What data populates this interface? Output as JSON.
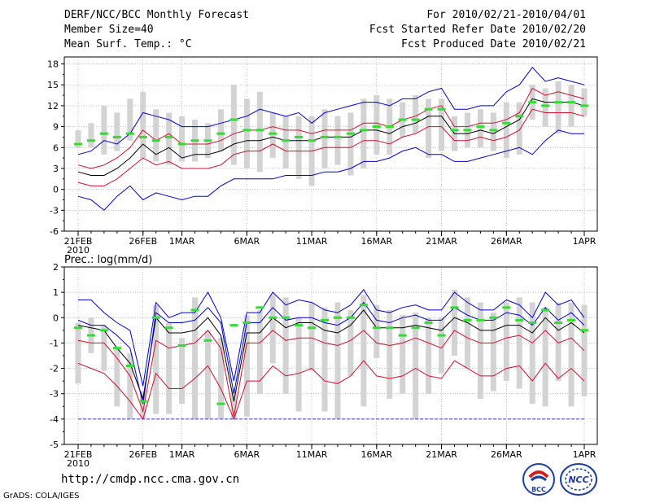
{
  "header": {
    "title": "DERF/NCC/BCC Monthly Forecast",
    "member_size": "Member Size=40",
    "variable1": "Mean Surf. Temp.: °C",
    "forecast_period": "For 2010/02/21-2010/04/01",
    "refer_date": "Fcst Started Refer Date 2010/02/20",
    "produced_date": "Fcst Produced Date 2010/02/21"
  },
  "footer": {
    "url": "http://cmdp.ncc.cma.gov.cn",
    "grads": "GrADS: COLA/IGES",
    "logo1_text": "BCC",
    "logo2_text": "NCC"
  },
  "colors": {
    "upper_blue": "#0000cc",
    "red": "#d01030",
    "mean": "#000000",
    "green": "#33dd33",
    "bar": "#d3d3d3",
    "grid": "#999999",
    "dashed_blue": "#3a3ad0"
  },
  "chart_data": [
    {
      "type": "line",
      "title": "Mean Surf. Temp.: °C",
      "ylim": [
        -6,
        19
      ],
      "yticks": [
        18,
        15,
        12,
        9,
        6,
        3,
        0,
        -3,
        -6
      ],
      "ytick_labels": [
        "18",
        "15",
        "12",
        "9",
        "6",
        "3",
        "0",
        "-3",
        "-6"
      ],
      "xticks": [
        {
          "day": 0,
          "label": "21FEB",
          "label2": "2010"
        },
        {
          "day": 5,
          "label": "26FEB",
          "label2": ""
        },
        {
          "day": 8,
          "label": "1MAR",
          "label2": ""
        },
        {
          "day": 13,
          "label": "6MAR",
          "label2": ""
        },
        {
          "day": 18,
          "label": "11MAR",
          "label2": ""
        },
        {
          "day": 23,
          "label": "16MAR",
          "label2": ""
        },
        {
          "day": 28,
          "label": "21MAR",
          "label2": ""
        },
        {
          "day": 33,
          "label": "26MAR",
          "label2": ""
        },
        {
          "day": 39,
          "label": "1APR",
          "label2": ""
        }
      ],
      "series": [
        {
          "name": "max",
          "color": "#0000cc",
          "values": [
            5.0,
            5.5,
            7.0,
            6.5,
            8.0,
            11.0,
            10.5,
            10.0,
            9.0,
            9.0,
            9.0,
            9.5,
            10.0,
            10.5,
            11.5,
            11.0,
            10.5,
            11.0,
            9.5,
            11.0,
            11.5,
            12.0,
            12.5,
            12.5,
            12.0,
            13.0,
            13.0,
            14.0,
            14.5,
            11.5,
            11.5,
            12.0,
            12.0,
            14.0,
            15.0,
            17.5,
            15.5,
            16.0,
            15.5,
            15.0
          ]
        },
        {
          "name": "upper",
          "color": "#d01030",
          "values": [
            3.5,
            3.0,
            3.5,
            4.5,
            6.0,
            8.5,
            7.0,
            8.0,
            6.5,
            6.5,
            6.5,
            7.0,
            8.0,
            8.5,
            8.5,
            9.0,
            8.5,
            8.5,
            8.0,
            8.5,
            8.5,
            8.5,
            9.5,
            9.5,
            9.0,
            10.0,
            10.5,
            11.5,
            12.0,
            9.0,
            9.0,
            9.5,
            9.5,
            10.0,
            11.0,
            14.5,
            13.5,
            14.0,
            13.5,
            13.0
          ]
        },
        {
          "name": "mean",
          "color": "#000000",
          "values": [
            2.5,
            2.0,
            2.0,
            3.0,
            4.5,
            6.5,
            5.0,
            6.0,
            4.5,
            5.0,
            5.0,
            5.5,
            6.5,
            7.0,
            7.0,
            7.5,
            7.0,
            7.0,
            7.0,
            7.5,
            7.5,
            7.5,
            8.5,
            8.5,
            8.0,
            9.0,
            9.5,
            10.5,
            10.5,
            8.0,
            8.0,
            8.5,
            8.0,
            9.0,
            10.0,
            13.0,
            12.5,
            12.5,
            12.5,
            12.0
          ]
        },
        {
          "name": "lower",
          "color": "#d01030",
          "values": [
            1.0,
            0.5,
            0.5,
            1.5,
            3.0,
            4.5,
            3.5,
            4.0,
            3.0,
            3.0,
            3.0,
            3.5,
            5.0,
            5.5,
            5.5,
            6.5,
            5.5,
            5.5,
            5.5,
            6.0,
            6.0,
            6.0,
            7.0,
            7.0,
            6.5,
            7.5,
            8.0,
            9.0,
            9.0,
            7.0,
            7.0,
            7.5,
            7.0,
            7.5,
            8.5,
            11.5,
            11.0,
            11.0,
            11.0,
            10.5
          ]
        },
        {
          "name": "min",
          "color": "#0000cc",
          "values": [
            -1.0,
            -1.5,
            -3.0,
            -1.0,
            0.5,
            -1.5,
            -0.5,
            -1.0,
            -1.5,
            -1.0,
            -1.0,
            0.5,
            1.5,
            1.5,
            1.5,
            1.5,
            2.0,
            2.0,
            2.0,
            2.5,
            2.5,
            3.0,
            4.0,
            4.0,
            4.5,
            5.5,
            6.0,
            5.0,
            5.0,
            4.0,
            4.0,
            4.5,
            5.0,
            5.5,
            6.0,
            5.0,
            7.0,
            8.5,
            8.0,
            8.0
          ]
        }
      ],
      "obs": [
        6.5,
        7.0,
        8.0,
        7.5,
        8.0,
        7.5,
        7.0,
        7.5,
        6.5,
        7.0,
        7.0,
        8.0,
        10.0,
        8.5,
        8.5,
        8.0,
        7.0,
        7.5,
        7.0,
        7.5,
        7.5,
        8.0,
        8.5,
        9.0,
        9.0,
        10.0,
        10.0,
        11.5,
        11.5,
        8.5,
        8.5,
        9.0,
        8.5,
        9.5,
        10.5,
        12.5,
        12.0,
        12.5,
        12.5,
        12.0
      ],
      "bars": [
        [
          6.0,
          8.5
        ],
        [
          6.0,
          9.5
        ],
        [
          5.0,
          12.0
        ],
        [
          5.5,
          11.0
        ],
        [
          7.0,
          13.0
        ],
        [
          4.5,
          14.0
        ],
        [
          4.0,
          11.5
        ],
        [
          3.5,
          11.0
        ],
        [
          4.0,
          10.5
        ],
        [
          4.0,
          10.0
        ],
        [
          4.5,
          9.5
        ],
        [
          5.5,
          11.5
        ],
        [
          3.5,
          15.0
        ],
        [
          3.0,
          13.0
        ],
        [
          2.5,
          14.0
        ],
        [
          4.5,
          11.0
        ],
        [
          3.0,
          10.5
        ],
        [
          1.5,
          10.5
        ],
        [
          0.5,
          10.5
        ],
        [
          3.0,
          11.5
        ],
        [
          3.5,
          10.5
        ],
        [
          2.0,
          11.0
        ],
        [
          3.0,
          13.0
        ],
        [
          5.0,
          13.5
        ],
        [
          5.0,
          13.0
        ],
        [
          7.5,
          12.5
        ],
        [
          8.0,
          13.5
        ],
        [
          4.5,
          13.0
        ],
        [
          5.5,
          13.0
        ],
        [
          5.5,
          10.5
        ],
        [
          6.0,
          11.0
        ],
        [
          6.0,
          11.5
        ],
        [
          5.5,
          11.0
        ],
        [
          4.5,
          12.5
        ],
        [
          5.0,
          12.5
        ],
        [
          10.0,
          15.0
        ],
        [
          9.0,
          14.5
        ],
        [
          8.0,
          15.5
        ],
        [
          9.0,
          15.0
        ],
        [
          10.5,
          14.5
        ]
      ]
    },
    {
      "type": "line",
      "title": "Prec.: log(mm/d)",
      "ylim": [
        -5,
        2
      ],
      "yticks": [
        2,
        1,
        0,
        -1,
        -2,
        -3,
        -4,
        -5
      ],
      "ytick_labels": [
        "2",
        "1",
        "0",
        "-1",
        "-2",
        "-3",
        "-4",
        "-5"
      ],
      "xticks": [
        {
          "day": 0,
          "label": "21FEB",
          "label2": "2010"
        },
        {
          "day": 5,
          "label": "26FEB",
          "label2": ""
        },
        {
          "day": 8,
          "label": "1MAR",
          "label2": ""
        },
        {
          "day": 13,
          "label": "6MAR",
          "label2": ""
        },
        {
          "day": 18,
          "label": "11MAR",
          "label2": ""
        },
        {
          "day": 23,
          "label": "16MAR",
          "label2": ""
        },
        {
          "day": 28,
          "label": "21MAR",
          "label2": ""
        },
        {
          "day": 33,
          "label": "26MAR",
          "label2": ""
        },
        {
          "day": 39,
          "label": "1APR",
          "label2": ""
        }
      ],
      "dashed_level": -4,
      "series": [
        {
          "name": "max",
          "color": "#0000cc",
          "values": [
            0.7,
            0.7,
            0.2,
            -0.2,
            -0.5,
            -2.7,
            0.6,
            0.0,
            0.2,
            0.2,
            1.0,
            0.0,
            -2.5,
            0.2,
            0.2,
            1.0,
            0.5,
            0.7,
            0.6,
            0.3,
            0.2,
            0.5,
            1.1,
            0.3,
            0.2,
            0.4,
            0.5,
            0.3,
            0.3,
            1.0,
            0.6,
            0.3,
            0.3,
            0.7,
            0.5,
            0.0,
            1.0,
            0.5,
            0.7,
            0.0
          ]
        },
        {
          "name": "upper",
          "color": "#000000",
          "values": [
            -0.3,
            -0.4,
            -0.5,
            -1.2,
            -1.8,
            -3.2,
            0.0,
            -0.6,
            -0.6,
            -0.5,
            0.0,
            -0.7,
            -3.3,
            -0.6,
            -0.6,
            0.0,
            -0.4,
            -0.2,
            -0.2,
            -0.5,
            -0.6,
            -0.3,
            0.3,
            -0.4,
            -0.4,
            -0.4,
            -0.3,
            -0.4,
            -0.5,
            0.0,
            -0.2,
            -0.5,
            -0.5,
            -0.3,
            -0.3,
            -0.6,
            0.0,
            -0.5,
            -0.2,
            -0.6
          ]
        },
        {
          "name": "mean",
          "color": "#d01030",
          "values": [
            -0.9,
            -1.0,
            -1.0,
            -1.6,
            -2.3,
            -3.7,
            -0.9,
            -1.2,
            -1.1,
            -1.0,
            -0.5,
            -1.2,
            -3.9,
            -1.0,
            -1.0,
            -0.5,
            -0.9,
            -0.8,
            -0.8,
            -1.0,
            -1.1,
            -0.9,
            -0.5,
            -1.0,
            -1.1,
            -1.0,
            -0.8,
            -1.0,
            -1.2,
            -0.5,
            -0.8,
            -1.0,
            -1.0,
            -0.8,
            -0.7,
            -1.0,
            -0.5,
            -1.0,
            -0.8,
            -1.3
          ]
        },
        {
          "name": "lower",
          "color": "#d01030",
          "values": [
            -1.8,
            -2.0,
            -2.2,
            -2.7,
            -3.3,
            -4.0,
            -2.2,
            -2.8,
            -2.8,
            -2.4,
            -1.9,
            -2.8,
            -4.0,
            -2.5,
            -2.5,
            -1.9,
            -2.3,
            -2.2,
            -2.0,
            -2.5,
            -2.6,
            -2.3,
            -1.7,
            -2.3,
            -2.4,
            -2.3,
            -2.0,
            -2.3,
            -2.4,
            -1.7,
            -2.0,
            -2.3,
            -2.3,
            -2.0,
            -1.9,
            -2.5,
            -1.8,
            -2.4,
            -2.0,
            -2.5
          ]
        },
        {
          "name": "min",
          "color": "#0000cc",
          "values": [
            -0.1,
            -0.3,
            -0.3,
            -0.7,
            -1.2,
            -3.4,
            0.2,
            -0.2,
            -0.2,
            -0.1,
            0.4,
            -0.2,
            -3.0,
            -0.2,
            -0.2,
            0.4,
            -0.1,
            0.0,
            0.0,
            -0.2,
            -0.3,
            0.0,
            0.6,
            -0.1,
            -0.2,
            0.0,
            0.1,
            -0.1,
            -0.1,
            0.4,
            0.1,
            -0.1,
            -0.1,
            0.2,
            0.1,
            -0.3,
            0.4,
            -0.1,
            0.2,
            -0.3
          ]
        }
      ],
      "obs": [
        -0.4,
        -0.7,
        -0.5,
        -1.2,
        -1.9,
        -3.3,
        0.0,
        -0.4,
        -1.1,
        0.3,
        -0.9,
        -3.4,
        -0.3,
        -0.2,
        0.4,
        0.0,
        0.0,
        -0.3,
        -0.4,
        -0.1,
        0.0,
        0.0,
        0.5,
        -0.4,
        -0.4,
        -0.7,
        -0.4,
        -0.2,
        -0.7,
        0.4,
        -0.1,
        -0.1,
        0.0,
        0.4,
        -0.1,
        -0.2,
        0.3,
        -0.2,
        -0.1,
        -0.5
      ],
      "bars": [
        [
          -2.6,
          -0.2
        ],
        [
          -1.4,
          0.0
        ],
        [
          -2.1,
          -0.3
        ],
        [
          -3.5,
          -1.2
        ],
        [
          -4.0,
          -1.4
        ],
        [
          -4.0,
          -2.9
        ],
        [
          -3.8,
          0.5
        ],
        [
          -3.8,
          -0.2
        ],
        [
          -3.4,
          -0.8
        ],
        [
          -4.0,
          0.8
        ],
        [
          -4.0,
          -0.5
        ],
        [
          -4.0,
          -0.8
        ],
        [
          -4.0,
          -2.8
        ],
        [
          -3.9,
          0.1
        ],
        [
          -3.0,
          0.3
        ],
        [
          -1.8,
          0.9
        ],
        [
          -3.0,
          0.8
        ],
        [
          -3.7,
          0.0
        ],
        [
          -2.1,
          0.6
        ],
        [
          -3.7,
          0.4
        ],
        [
          -4.0,
          0.6
        ],
        [
          -2.3,
          0.3
        ],
        [
          -3.5,
          0.9
        ],
        [
          -1.6,
          0.5
        ],
        [
          -3.2,
          0.3
        ],
        [
          -3.0,
          0.1
        ],
        [
          -4.0,
          0.2
        ],
        [
          -3.0,
          0.0
        ],
        [
          -2.2,
          0.0
        ],
        [
          -1.5,
          1.1
        ],
        [
          -2.0,
          0.8
        ],
        [
          -3.2,
          0.6
        ],
        [
          -2.9,
          0.2
        ],
        [
          -2.5,
          0.6
        ],
        [
          -2.8,
          0.8
        ],
        [
          -3.4,
          0.6
        ],
        [
          -3.5,
          0.4
        ],
        [
          -2.5,
          0.6
        ],
        [
          -3.5,
          0.6
        ],
        [
          -3.1,
          0.5
        ]
      ]
    }
  ]
}
